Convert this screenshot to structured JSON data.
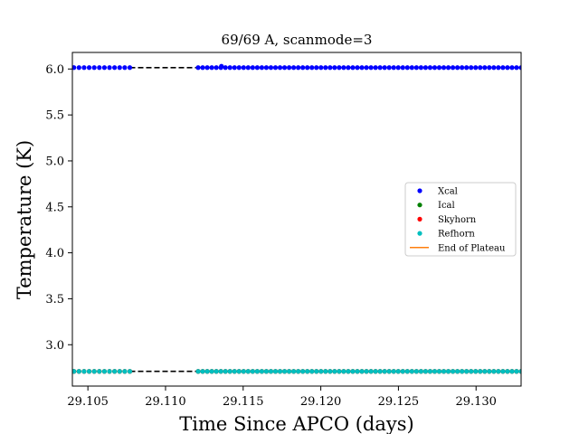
{
  "chart_data": {
    "type": "scatter",
    "title": "69/69 A, scanmode=3",
    "xlabel": "Time Since APCO (days)",
    "ylabel": "Temperature (K)",
    "xlim": [
      29.104,
      29.1329
    ],
    "ylim": [
      2.55,
      6.18
    ],
    "xticks": [
      29.105,
      29.11,
      29.115,
      29.12,
      29.125,
      29.13
    ],
    "xtick_labels": [
      "29.105",
      "29.110",
      "29.115",
      "29.120",
      "29.125",
      "29.130"
    ],
    "yticks": [
      3.0,
      3.5,
      4.0,
      4.5,
      5.0,
      5.5,
      6.0
    ],
    "ytick_labels": [
      "3.0",
      "3.5",
      "4.0",
      "4.5",
      "5.0",
      "5.5",
      "6.0"
    ],
    "grid": false,
    "legend_position": "center-right",
    "sampling": {
      "segments": [
        {
          "x_start": 29.1041,
          "x_end": 29.1077,
          "count": 12
        },
        {
          "x_start": 29.1121,
          "x_end": 29.1329,
          "count": 72
        }
      ]
    },
    "series": [
      {
        "name": "Xcal",
        "color": "#0000ff",
        "marker": "dot",
        "level": 6.015,
        "outlier": {
          "x": 29.1136,
          "y": 6.03
        }
      },
      {
        "name": "Ical",
        "color": "#008000",
        "marker": "dot",
        "level": 2.71
      },
      {
        "name": "Skyhorn",
        "color": "#ff0000",
        "marker": "dot",
        "level": 2.71
      },
      {
        "name": "Refhorn",
        "color": "#00bfbf",
        "marker": "dot",
        "level": 2.71
      },
      {
        "name": "End of Plateau",
        "color": "#ff7f0e",
        "marker": "line"
      }
    ],
    "gap_lines": [
      {
        "x_start": 29.1077,
        "x_end": 29.1121,
        "y": 6.015,
        "color": "#000000",
        "style": "dashed"
      },
      {
        "x_start": 29.1077,
        "x_end": 29.1121,
        "y": 2.71,
        "color": "#000000",
        "style": "dashed"
      }
    ]
  }
}
